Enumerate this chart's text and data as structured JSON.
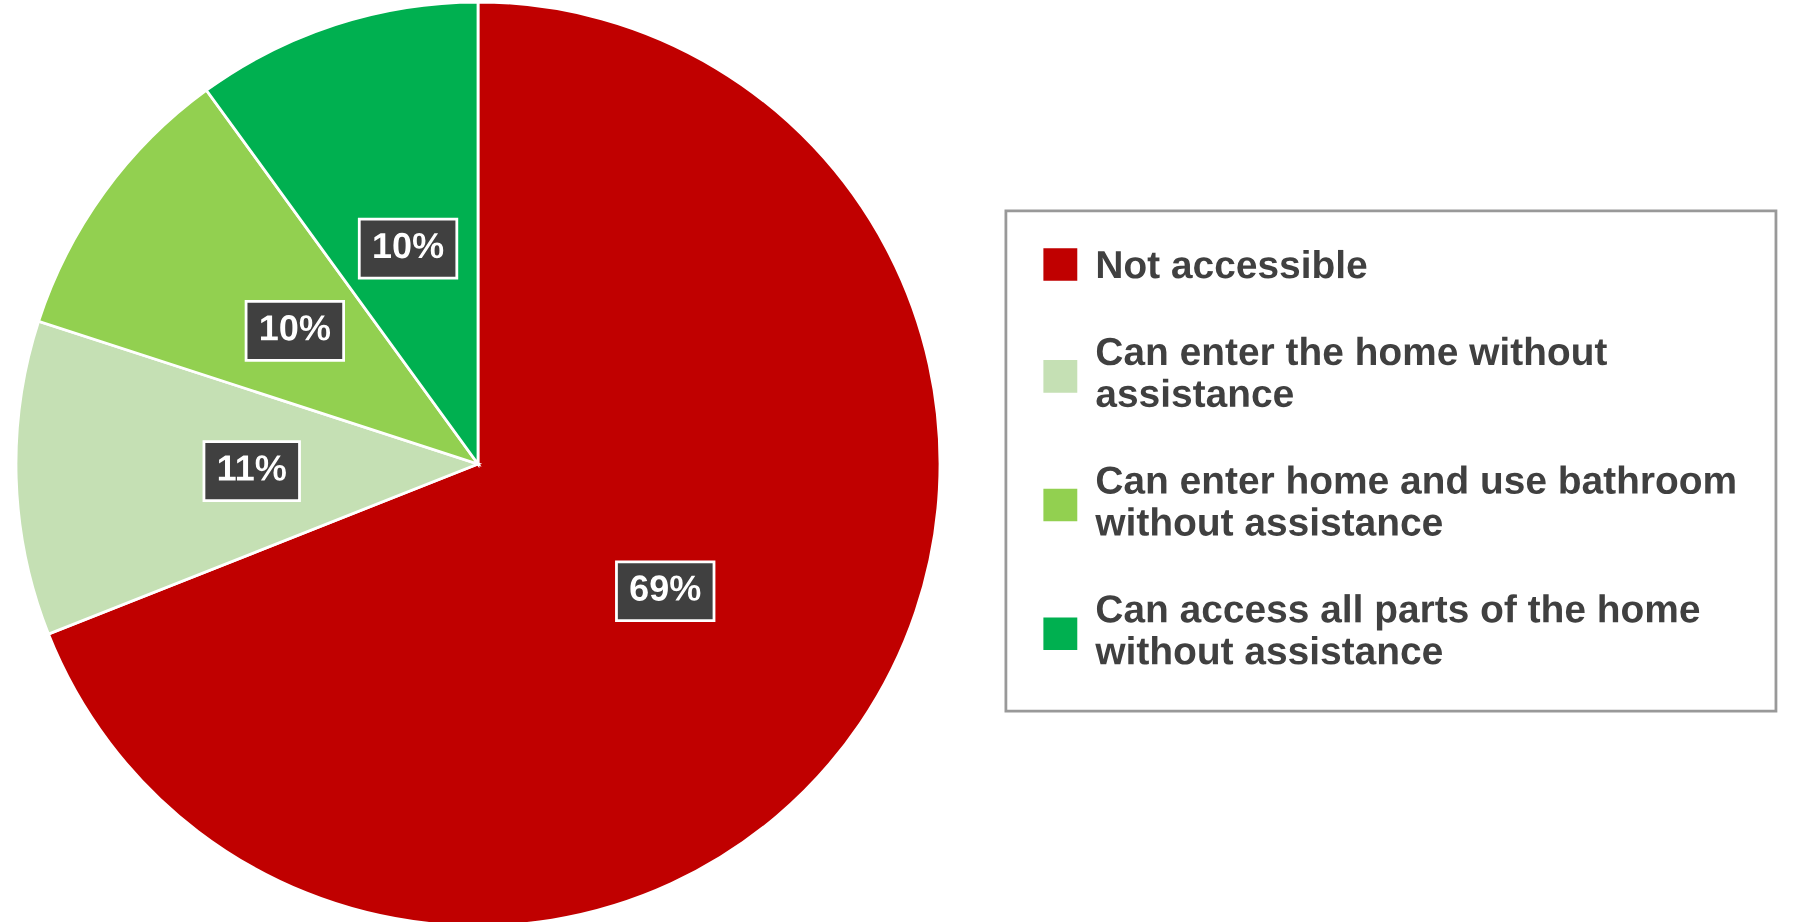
{
  "chart_data": {
    "type": "pie",
    "categories": [
      "Not accessible",
      "Can enter the home without assistance",
      "Can enter home and use bathroom without assistance",
      "Can access all parts of the home without assistance"
    ],
    "values": [
      69,
      11,
      10,
      10
    ],
    "colors": [
      "#c00000",
      "#c5e0b4",
      "#92d050",
      "#00b050"
    ],
    "value_labels": [
      "69%",
      "11%",
      "10%",
      "10%"
    ],
    "legend": "right"
  }
}
